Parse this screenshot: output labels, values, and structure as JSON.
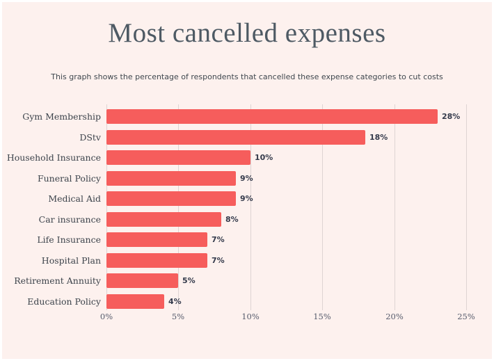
{
  "header": {
    "title": "Most cancelled expenses",
    "subtitle": "This graph shows the percentage of respondents that cancelled these expense categories to cut costs"
  },
  "chart_data": {
    "type": "bar",
    "orientation": "horizontal",
    "title": "Most cancelled expenses",
    "subtitle": "This graph shows the percentage of respondents that cancelled these expense categories to cut costs",
    "categories": [
      "Gym Membership",
      "DStv",
      "Household Insurance",
      "Funeral Policy",
      "Medical Aid",
      "Car insurance",
      "Life Insurance",
      "Hospital Plan",
      "Retirement Annuity",
      "Education Policy"
    ],
    "values": [
      28,
      18,
      10,
      9,
      9,
      8,
      7,
      7,
      5,
      4
    ],
    "value_labels": [
      "28%",
      "18%",
      "10%",
      "9%",
      "9%",
      "8%",
      "7%",
      "7%",
      "5%",
      "4%"
    ],
    "bar_drawn_values": [
      23,
      18,
      10,
      9,
      9,
      8,
      7,
      7,
      5,
      4
    ],
    "x_tick_labels": [
      "0%",
      "5%",
      "10%",
      "15%",
      "20%",
      "25%"
    ],
    "xlim": [
      0,
      25
    ],
    "grid": true,
    "legend": false,
    "colors": {
      "bar": "#f65d5c",
      "canvas_background": "#fdf1ee",
      "page_border": "#ffffff",
      "gridline": "#ded4d3",
      "title_text": "#4e5a64",
      "subtitle_text": "#3f474e",
      "category_text": "#3c434b",
      "value_text": "#343a4b",
      "tick_text": "#575c6d"
    }
  }
}
